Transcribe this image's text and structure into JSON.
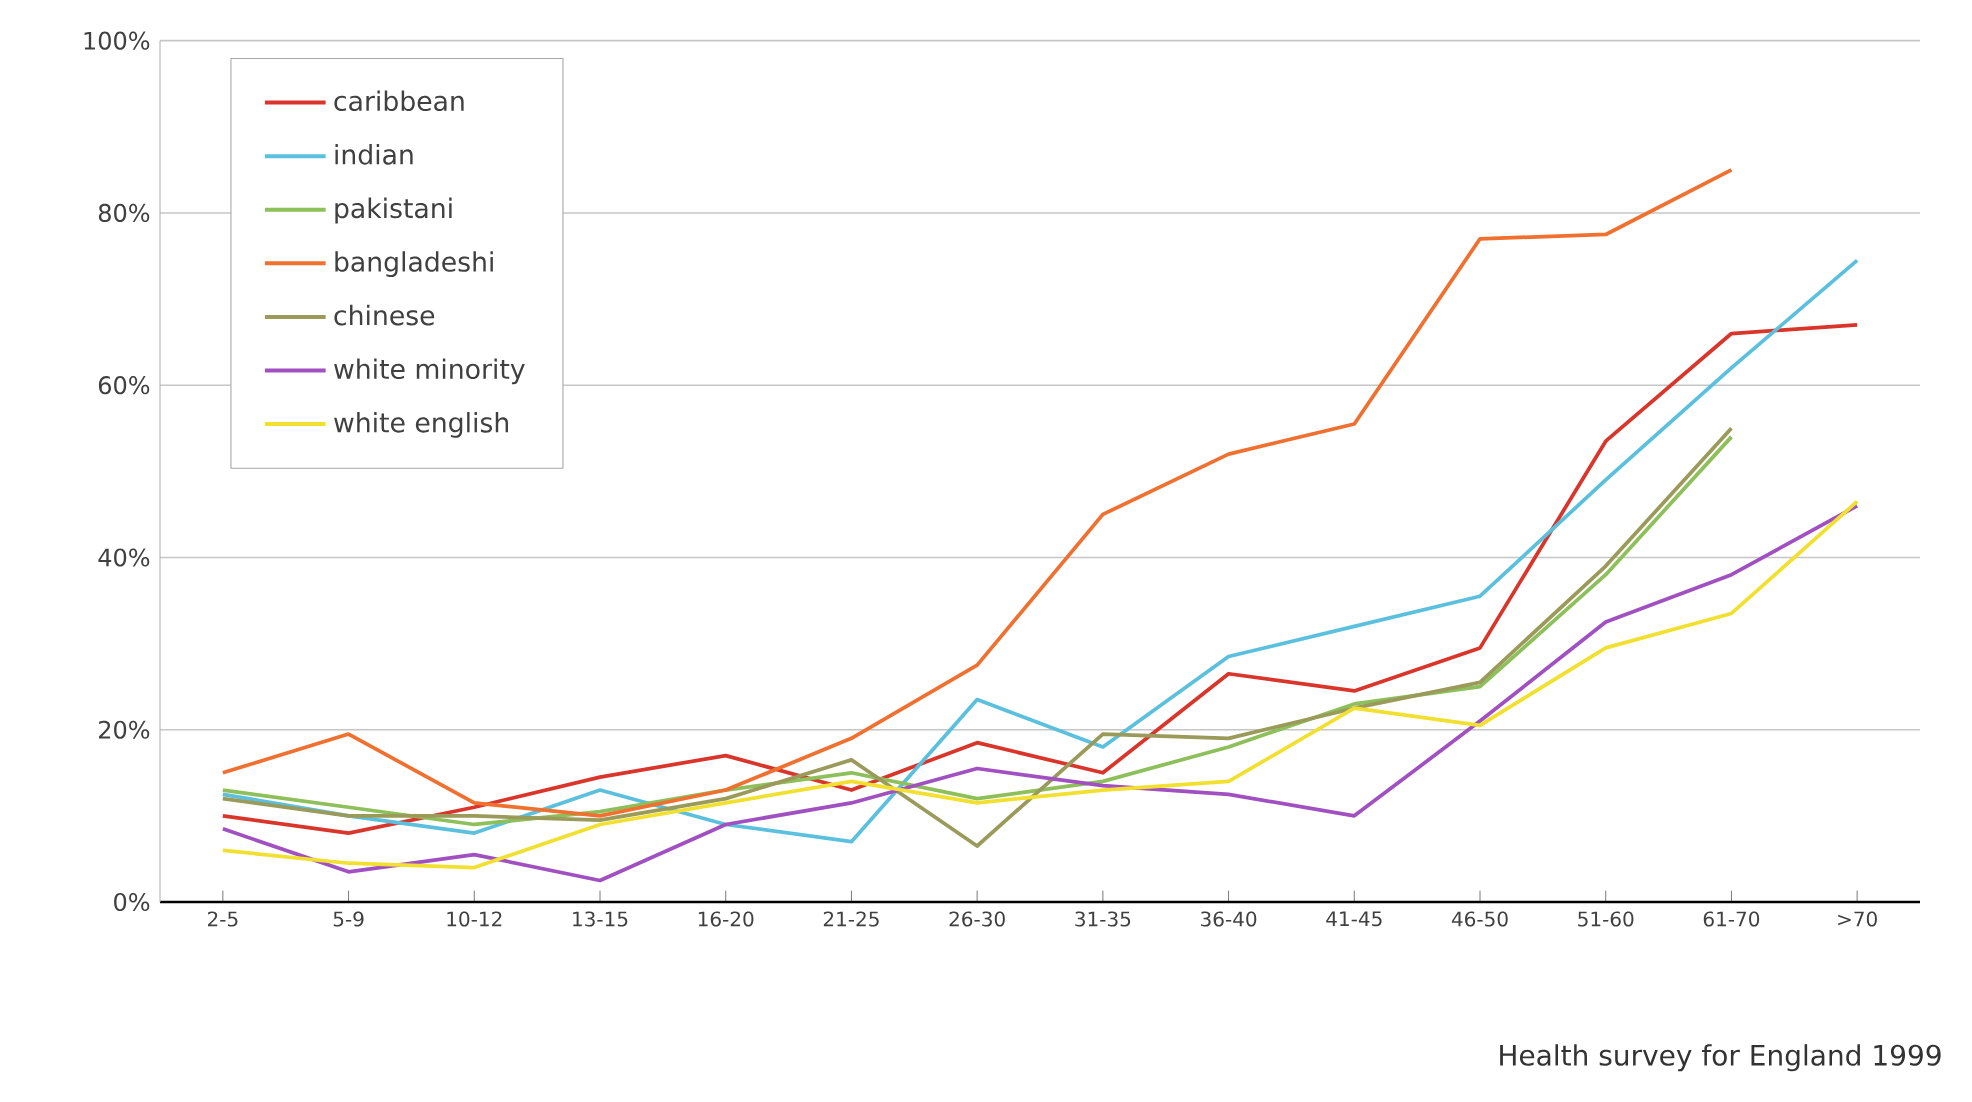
{
  "chart_data": {
    "type": "line",
    "categories": [
      "2-5",
      "5-9",
      "10-12",
      "13-15",
      "16-20",
      "21-25",
      "26-30",
      "31-35",
      "36-40",
      "41-45",
      "46-50",
      "51-60",
      "61-70",
      ">70"
    ],
    "series": [
      {
        "name": "caribbean",
        "color": "#d9352a",
        "values": [
          10,
          8,
          11,
          14.5,
          17,
          13,
          18.5,
          15,
          26.5,
          24.5,
          29.5,
          53.5,
          66,
          67
        ]
      },
      {
        "name": "indian",
        "color": "#5bc0de",
        "values": [
          12.5,
          10,
          8,
          13,
          9,
          7,
          23.5,
          18,
          28.5,
          32,
          35.5,
          49,
          62,
          74.5
        ]
      },
      {
        "name": "pakistani",
        "color": "#8dbf5a",
        "values": [
          13,
          11,
          9,
          10.5,
          13,
          15,
          12,
          14,
          18,
          23,
          25,
          38,
          54,
          null
        ]
      },
      {
        "name": "bangladeshi",
        "color": "#f07030",
        "values": [
          15,
          19.5,
          11.5,
          10,
          13,
          19,
          27.5,
          45,
          52,
          55.5,
          77,
          77.5,
          85,
          null
        ]
      },
      {
        "name": "chinese",
        "color": "#9a9a5a",
        "values": [
          12,
          10,
          10,
          9.5,
          12,
          16.5,
          6.5,
          19.5,
          19,
          22.5,
          25.5,
          39,
          55,
          null
        ]
      },
      {
        "name": "white minority",
        "color": "#a050c0",
        "values": [
          8.5,
          3.5,
          5.5,
          2.5,
          9,
          11.5,
          15.5,
          13.5,
          12.5,
          10,
          21,
          32.5,
          38,
          46
        ]
      },
      {
        "name": "white english",
        "color": "#f2e030",
        "values": [
          6,
          4.5,
          4,
          9,
          11.5,
          14,
          11.5,
          13,
          14,
          22.5,
          20.5,
          29.5,
          33.5,
          46.5
        ]
      }
    ],
    "ylim": [
      0,
      100
    ],
    "yticks": [
      {
        "value": 0,
        "label": "0%"
      },
      {
        "value": 20,
        "label": "20%"
      },
      {
        "value": 40,
        "label": "40%"
      },
      {
        "value": 60,
        "label": "60%"
      },
      {
        "value": 80,
        "label": "80%"
      },
      {
        "value": 100,
        "label": "100%"
      }
    ],
    "grid": "y",
    "legend": "top left",
    "marker": "none",
    "line_style": "solid",
    "annotations": [
      "Health survey for England 1999"
    ]
  }
}
